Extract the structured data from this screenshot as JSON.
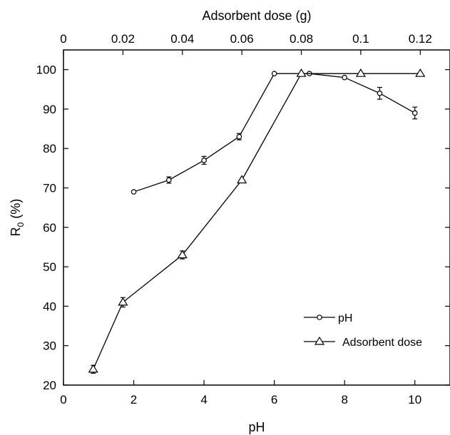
{
  "chart_data": {
    "type": "line",
    "x_top_label": "Adsorbent dose (g)",
    "x_bottom_label": "pH",
    "y_label_main": "R",
    "y_label_sub": "0",
    "y_label_unit": " (%)",
    "x_bottom_ticks": [
      "0",
      "2",
      "4",
      "6",
      "8",
      "10"
    ],
    "x_top_ticks": [
      "0",
      "0.02",
      "0.04",
      "0.06",
      "0.08",
      "0.1",
      "0.12"
    ],
    "y_ticks": [
      "20",
      "30",
      "40",
      "50",
      "60",
      "70",
      "80",
      "90",
      "100"
    ],
    "x_bottom_range": [
      0,
      11
    ],
    "x_top_range": [
      0,
      0.13
    ],
    "y_range": [
      20,
      105
    ],
    "series": [
      {
        "name": "pH",
        "marker": "circle",
        "axis": "bottom",
        "x": [
          2,
          3,
          4,
          5,
          6,
          7,
          8,
          9,
          10
        ],
        "y": [
          69,
          72,
          77,
          83,
          99,
          99,
          98,
          94,
          89
        ],
        "err": [
          0,
          0.8,
          1,
          0.8,
          0,
          0,
          0,
          1.5,
          1.5
        ]
      },
      {
        "name": "Adsorbent dose",
        "marker": "triangle",
        "axis": "top",
        "x": [
          0.01,
          0.02,
          0.04,
          0.06,
          0.08,
          0.1,
          0.12
        ],
        "y": [
          24,
          41,
          53,
          72,
          99,
          99,
          99
        ],
        "err": [
          1,
          1.2,
          1,
          0,
          0,
          0,
          0
        ]
      }
    ],
    "legend": {
      "position": "bottom-right"
    }
  }
}
